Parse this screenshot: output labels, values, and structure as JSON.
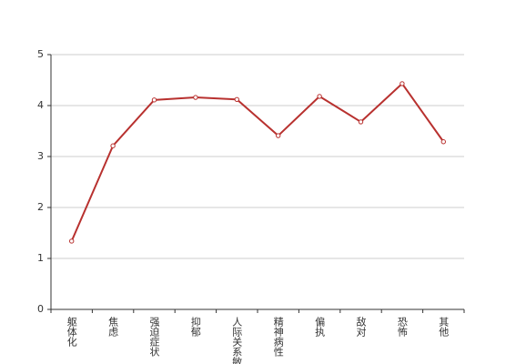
{
  "chart_data": {
    "type": "line",
    "categories": [
      "躯体化",
      "焦虑",
      "强迫症状",
      "抑郁",
      "人际关系敏感",
      "精神病性",
      "偏执",
      "敌对",
      "恐怖",
      "其他"
    ],
    "values": [
      1.34,
      3.21,
      4.11,
      4.16,
      4.12,
      3.41,
      4.18,
      3.68,
      4.43,
      3.29
    ],
    "color": "#b8312f",
    "ylim": [
      0,
      5
    ],
    "yticks": [
      0,
      1,
      2,
      3,
      4,
      5
    ],
    "grid": true
  }
}
